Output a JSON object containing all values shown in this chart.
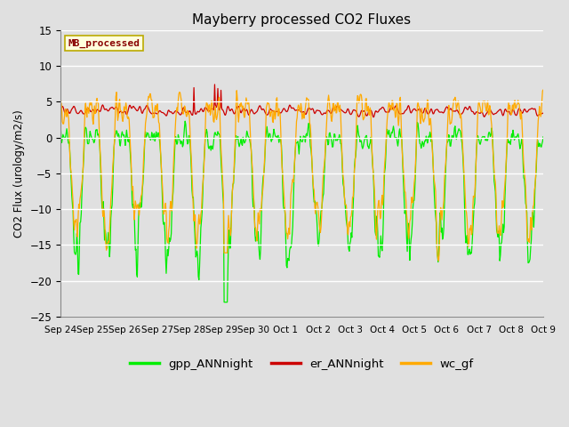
{
  "title": "Mayberry processed CO2 Fluxes",
  "ylabel": "CO2 Flux (urology/m2/s)",
  "ylim": [
    -25,
    15
  ],
  "yticks": [
    -25,
    -20,
    -15,
    -10,
    -5,
    0,
    5,
    10,
    15
  ],
  "plot_bg_color": "#e0e0e0",
  "fig_bg_color": "#e0e0e0",
  "legend_label": "MB_processed",
  "legend_bg": "#ffffdd",
  "legend_edge": "#bbaa00",
  "gpp_color": "#00ee00",
  "er_color": "#cc0000",
  "wc_color": "#ffaa00",
  "gpp_label": "gpp_ANNnight",
  "er_label": "er_ANNnight",
  "wc_label": "wc_gf",
  "x_labels": [
    "Sep 24",
    "Sep 25",
    "Sep 26",
    "Sep 27",
    "Sep 28",
    "Sep 29",
    "Sep 30",
    "Oct 1",
    "Oct 2",
    "Oct 3",
    "Oct 4",
    "Oct 5",
    "Oct 6",
    "Oct 7",
    "Oct 8",
    "Oct 9"
  ],
  "lw": 0.9,
  "seed": 7
}
